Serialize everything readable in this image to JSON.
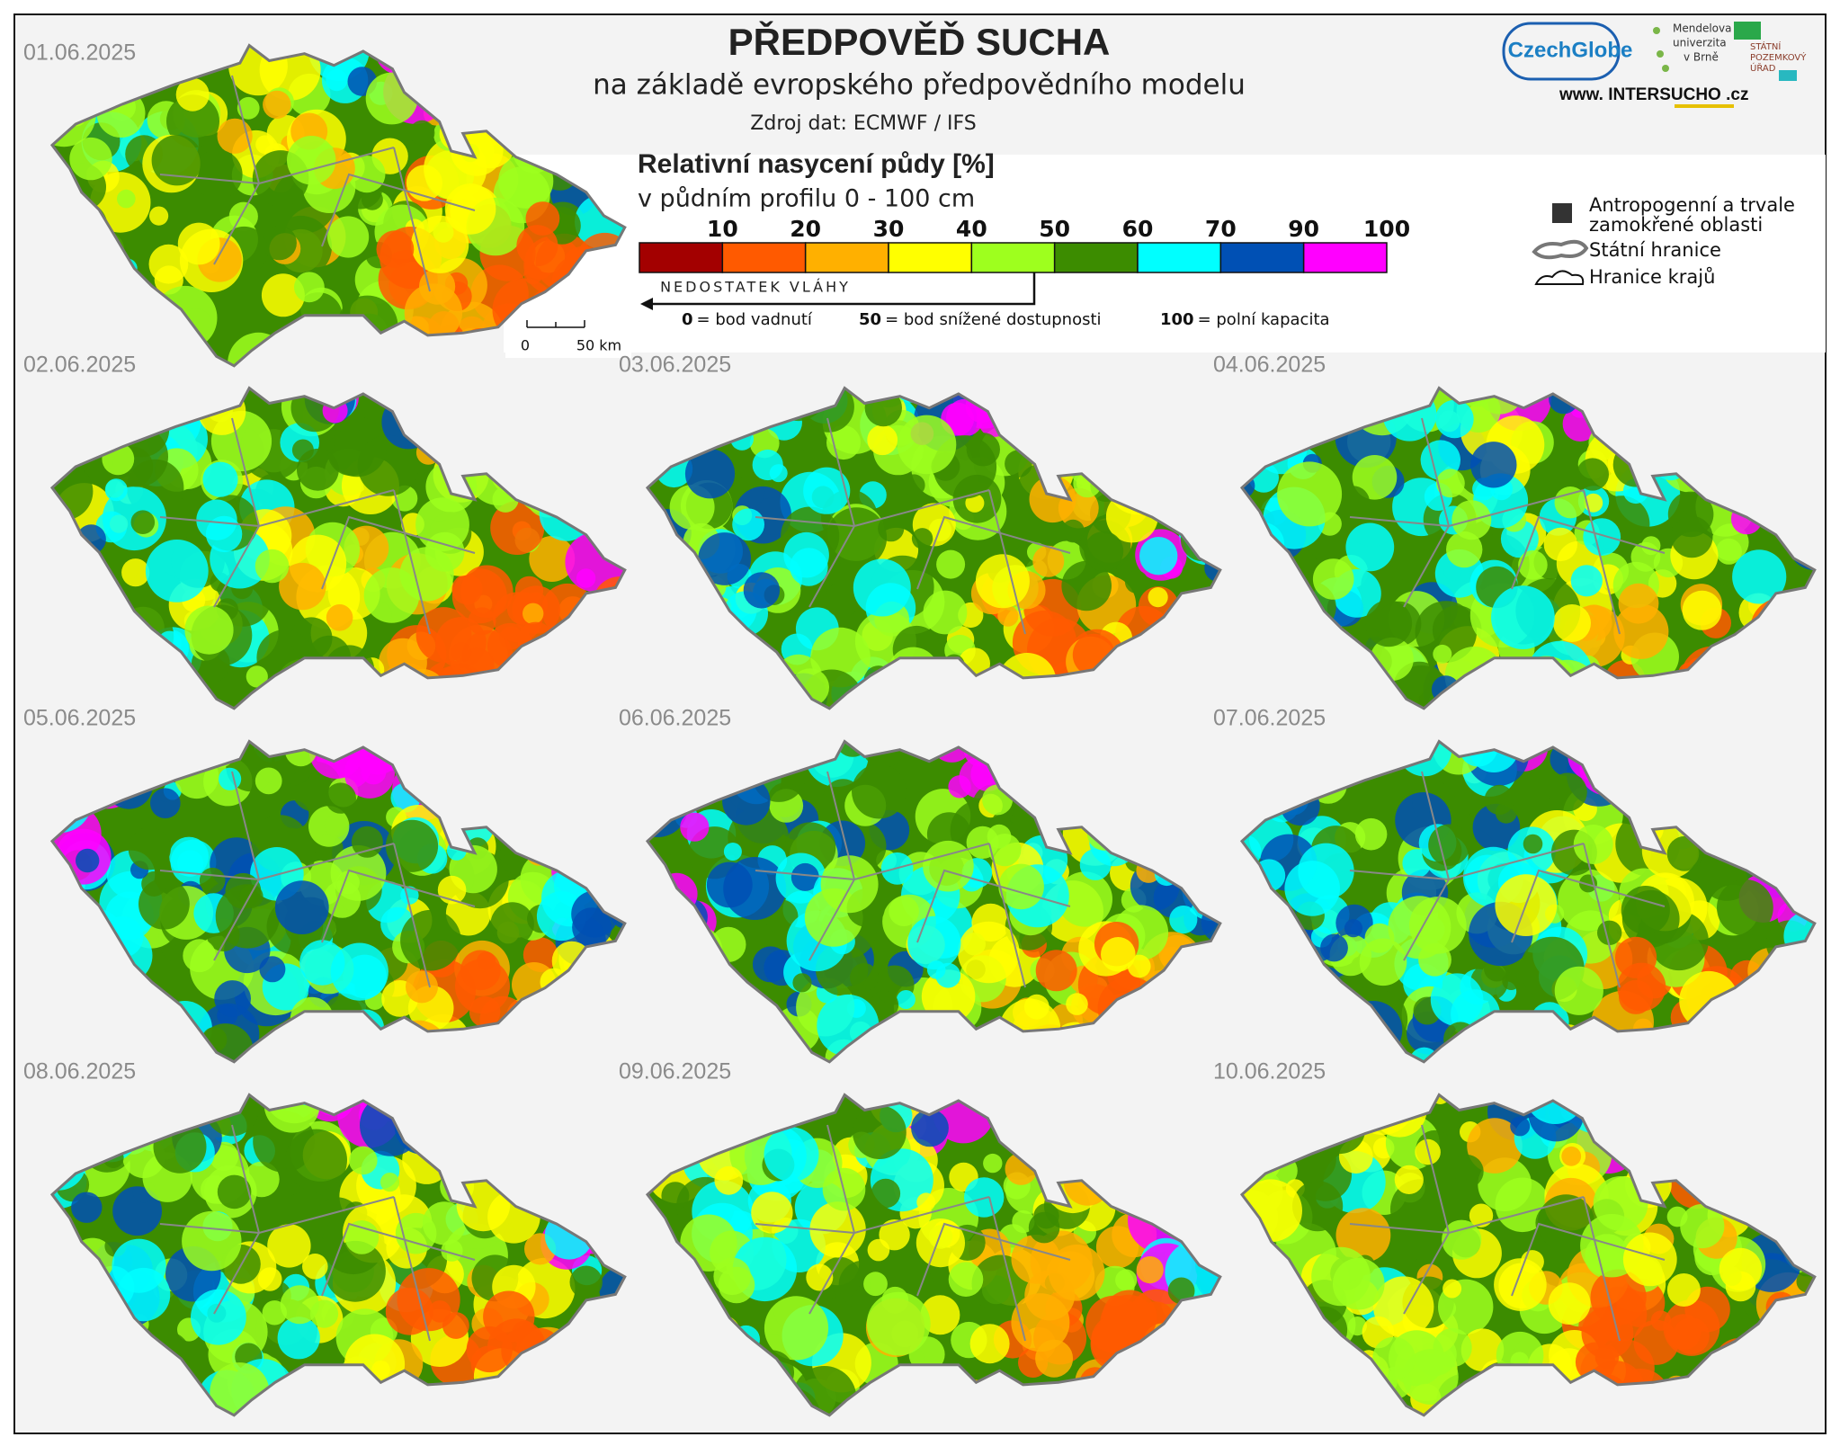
{
  "header": {
    "title": "PŘEDPOVĚĎ SUCHA",
    "subtitle": "na základě evropského předpovědního modelu",
    "source": "Zdroj dat: ECMWF / IFS"
  },
  "logos": {
    "czechglobe": "CzechGlobe",
    "mendelu": [
      "Mendelova",
      "univerzita",
      "v Brně"
    ],
    "spu": [
      "STÁTNÍ",
      "POZEMKOVÝ",
      "ÚŘAD"
    ],
    "web": [
      "www. INTER",
      "SUCHO",
      " .cz"
    ]
  },
  "legend": {
    "title": "Relativní nasycení půdy [%]",
    "subtitle": "v půdním profilu 0 - 100 cm",
    "ticks": [
      10,
      20,
      30,
      40,
      50,
      60,
      70,
      90,
      100
    ],
    "colors": [
      "#a30000",
      "#ff5a00",
      "#ffb000",
      "#ffff00",
      "#9eff1e",
      "#3c8c00",
      "#00ffff",
      "#0050b4",
      "#ff00ff"
    ],
    "arrow": "NEDOSTATEK VLÁHY",
    "notes": [
      {
        "value": "0",
        "text": "= bod vadnutí"
      },
      {
        "value": "50",
        "text": "= bod snížené dostupnosti"
      },
      {
        "value": "100",
        "text": "= polní kapacita"
      }
    ],
    "symbols": [
      [
        "Antropogenní a trvale",
        "zamokřené oblasti"
      ],
      [
        "Státní hranice"
      ],
      [
        "Hranice krajů"
      ]
    ]
  },
  "scale_bar": [
    "0",
    "50 km"
  ],
  "maps": [
    "01.06.2025",
    "02.06.2025",
    "03.06.2025",
    "04.06.2025",
    "05.06.2025",
    "06.06.2025",
    "07.06.2025",
    "08.06.2025",
    "09.06.2025",
    "10.06.2025"
  ]
}
